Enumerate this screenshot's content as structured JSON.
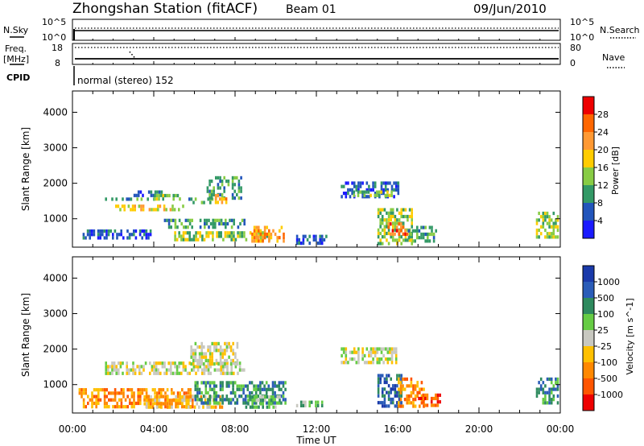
{
  "header": {
    "station": "Zhongshan Station (fitACF)",
    "beam": "Beam 01",
    "date": "09/Jun/2010"
  },
  "noise_panel": {
    "left_label": "N.Sky",
    "right_label": "N.Search",
    "top_tick": "10^5",
    "bottom_tick": "10^0"
  },
  "freq_panel": {
    "left_label_1": "Freq.",
    "left_label_2": "[MHz]",
    "right_label": "Nave",
    "left_top_tick": "18",
    "left_bottom_tick": "8",
    "right_top_tick": "80",
    "right_bottom_tick": "0"
  },
  "cpid": {
    "label": "CPID",
    "mode": "normal (stereo) 152"
  },
  "chart_data": [
    {
      "type": "heatmap",
      "name": "power",
      "ylabel": "Slant Range [km]",
      "ylim": [
        200,
        4600
      ],
      "yticks": [
        "1000",
        "2000",
        "3000",
        "4000"
      ],
      "colorbar_label": "Power [dB]",
      "colorbar_ticks": [
        "4",
        "8",
        "12",
        "16",
        "20",
        "24",
        "28"
      ],
      "colors": [
        "#1a1aff",
        "#2255bb",
        "#339966",
        "#88cc44",
        "#ffcc00",
        "#ff9933",
        "#ff6600",
        "#ee0000"
      ],
      "patches": [
        {
          "t0": 1.6,
          "t1": 4.2,
          "r0": 1450,
          "r1": 1600,
          "v": 2
        },
        {
          "t0": 2.1,
          "t1": 5.6,
          "r0": 1150,
          "r1": 1400,
          "v": 4
        },
        {
          "t0": 3.0,
          "t1": 4.5,
          "r0": 1550,
          "r1": 1800,
          "v": 1
        },
        {
          "t0": 4.0,
          "t1": 5.4,
          "r0": 1500,
          "r1": 1700,
          "v": 3
        },
        {
          "t0": 5.6,
          "t1": 7.0,
          "r0": 1400,
          "r1": 1600,
          "v": 2
        },
        {
          "t0": 6.6,
          "t1": 8.4,
          "r0": 1500,
          "r1": 2200,
          "v": 2
        },
        {
          "t0": 7.0,
          "t1": 7.8,
          "r0": 1400,
          "r1": 1700,
          "v": 5
        },
        {
          "t0": 4.5,
          "t1": 8.6,
          "r0": 700,
          "r1": 1000,
          "v": 2
        },
        {
          "t0": 0.5,
          "t1": 4.0,
          "r0": 350,
          "r1": 700,
          "v": 1
        },
        {
          "t0": 5.0,
          "t1": 9.8,
          "r0": 350,
          "r1": 650,
          "v": 3
        },
        {
          "t0": 8.8,
          "t1": 10.5,
          "r0": 300,
          "r1": 800,
          "v": 5
        },
        {
          "t0": 13.2,
          "t1": 16.1,
          "r0": 1500,
          "r1": 2050,
          "v": 1
        },
        {
          "t0": 13.8,
          "t1": 15.8,
          "r0": 1550,
          "r1": 1800,
          "v": 3
        },
        {
          "t0": 15.0,
          "t1": 16.8,
          "r0": 250,
          "r1": 1300,
          "v": 3
        },
        {
          "t0": 15.5,
          "t1": 16.6,
          "r0": 500,
          "r1": 900,
          "v": 6
        },
        {
          "t0": 16.5,
          "t1": 18.0,
          "r0": 250,
          "r1": 800,
          "v": 2
        },
        {
          "t0": 22.8,
          "t1": 24.0,
          "r0": 400,
          "r1": 1200,
          "v": 3
        },
        {
          "t0": 11.0,
          "t1": 12.6,
          "r0": 250,
          "r1": 550,
          "v": 1
        }
      ]
    },
    {
      "type": "heatmap",
      "name": "velocity",
      "ylabel": "Slant Range [km]",
      "ylim": [
        200,
        4600
      ],
      "yticks": [
        "1000",
        "2000",
        "3000",
        "4000"
      ],
      "colorbar_label": "Velocity [m s^-1]",
      "colorbar_ticks": [
        "1000",
        "500",
        "100",
        "25",
        "-25",
        "-100",
        "-500",
        "-1000"
      ],
      "colors": [
        "#1a3aaa",
        "#2a5cb8",
        "#2e8a5e",
        "#66cc44",
        "#c8c8c0",
        "#ffc000",
        "#ff8800",
        "#ff5500",
        "#ee0000"
      ],
      "patches": [
        {
          "t0": 1.6,
          "t1": 8.6,
          "r0": 1200,
          "r1": 1650,
          "v": 4
        },
        {
          "t0": 5.8,
          "t1": 8.2,
          "r0": 1500,
          "r1": 2200,
          "v": 4
        },
        {
          "t0": 13.2,
          "t1": 16.0,
          "r0": 1500,
          "r1": 2050,
          "v": 4
        },
        {
          "t0": 0.3,
          "t1": 6.0,
          "r0": 250,
          "r1": 900,
          "v": 6
        },
        {
          "t0": 3.5,
          "t1": 7.5,
          "r0": 300,
          "r1": 700,
          "v": 5
        },
        {
          "t0": 6.0,
          "t1": 10.6,
          "r0": 350,
          "r1": 1100,
          "v": 2
        },
        {
          "t0": 8.5,
          "t1": 10.4,
          "r0": 300,
          "r1": 700,
          "v": 3
        },
        {
          "t0": 11.0,
          "t1": 12.4,
          "r0": 300,
          "r1": 550,
          "v": 3
        },
        {
          "t0": 15.0,
          "t1": 16.3,
          "r0": 300,
          "r1": 1300,
          "v": 1
        },
        {
          "t0": 16.0,
          "t1": 17.4,
          "r0": 300,
          "r1": 1200,
          "v": 6
        },
        {
          "t0": 17.0,
          "t1": 18.2,
          "r0": 350,
          "r1": 750,
          "v": 7
        },
        {
          "t0": 22.8,
          "t1": 24.0,
          "r0": 400,
          "r1": 1200,
          "v": 2
        }
      ]
    }
  ],
  "xaxis": {
    "label": "Time UT",
    "ticks": [
      "00:00",
      "04:00",
      "08:00",
      "12:00",
      "16:00",
      "20:00",
      "00:00"
    ],
    "xlim": [
      0,
      24
    ]
  }
}
